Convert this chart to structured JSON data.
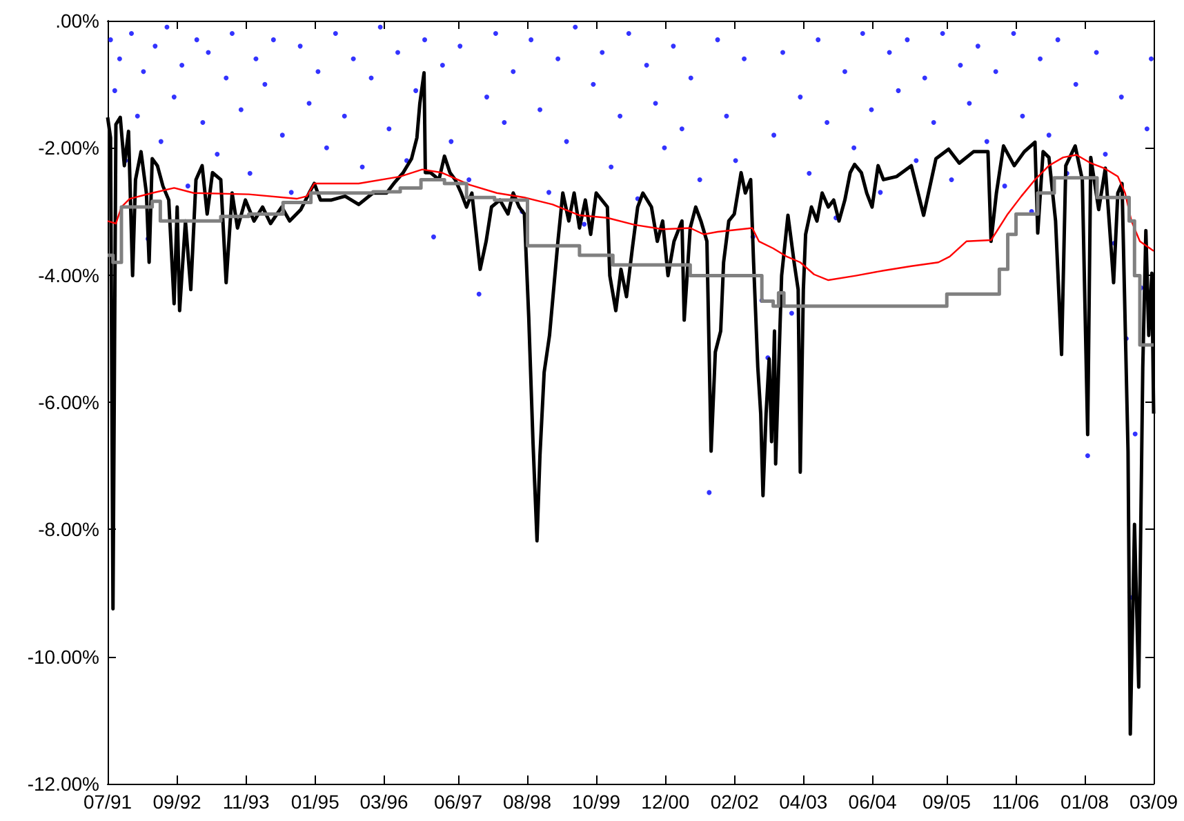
{
  "chart_data": {
    "type": "line",
    "xlim": [
      "1991-07-01",
      "2009-03-01"
    ],
    "ylim": [
      -12,
      0
    ],
    "xticks": [
      {
        "value": "1991-07",
        "label": "07/91"
      },
      {
        "value": "1992-09",
        "label": "09/92"
      },
      {
        "value": "1993-11",
        "label": "11/93"
      },
      {
        "value": "1995-01",
        "label": "01/95"
      },
      {
        "value": "1996-03",
        "label": "03/96"
      },
      {
        "value": "1997-06",
        "label": "06/97"
      },
      {
        "value": "1998-08",
        "label": "08/98"
      },
      {
        "value": "1999-10",
        "label": "10/99"
      },
      {
        "value": "2000-12",
        "label": "12/00"
      },
      {
        "value": "2002-02",
        "label": "02/02"
      },
      {
        "value": "2003-04",
        "label": "04/03"
      },
      {
        "value": "2004-06",
        "label": "06/04"
      },
      {
        "value": "2005-09",
        "label": "09/05"
      },
      {
        "value": "2006-11",
        "label": "11/06"
      },
      {
        "value": "2008-01",
        "label": "01/08"
      },
      {
        "value": "2009-03",
        "label": "03/09"
      }
    ],
    "yticks": [
      {
        "value": 0,
        "label": ".00%"
      },
      {
        "value": -2,
        "label": "-2.00%"
      },
      {
        "value": -4,
        "label": "-4.00%"
      },
      {
        "value": -6,
        "label": "-6.00%"
      },
      {
        "value": -8,
        "label": "-8.00%"
      },
      {
        "value": -10,
        "label": "-10.00%"
      },
      {
        "value": -12,
        "label": "-12.00%"
      }
    ],
    "series": [
      {
        "type": "scatter",
        "color": "#0000ff",
        "x": [
          "1991-07-19",
          "1991-08-14",
          "1991-09-13",
          "1991-10-19",
          "1991-11-25",
          "1992-01-01",
          "1992-02-07",
          "1992-03-06",
          "1992-04-19",
          "1992-05-25",
          "1992-07-01",
          "1992-08-14",
          "1992-10-01",
          "1992-11-07",
          "1993-01-01",
          "1993-02-07",
          "1993-03-13",
          "1993-05-07",
          "1993-07-01",
          "1993-08-07",
          "1993-10-01",
          "1993-11-25",
          "1994-01-01",
          "1994-02-25",
          "1994-04-19",
          "1994-06-13",
          "1994-08-07",
          "1994-10-01",
          "1994-11-25",
          "1995-01-19",
          "1995-03-13",
          "1995-05-07",
          "1995-07-01",
          "1995-08-25",
          "1995-10-19",
          "1995-12-13",
          "1996-02-07",
          "1996-04-01",
          "1996-05-25",
          "1996-07-19",
          "1996-09-13",
          "1996-11-07",
          "1997-01-01",
          "1997-02-25",
          "1997-04-19",
          "1997-06-13",
          "1997-08-07",
          "1997-10-08",
          "1997-11-25",
          "1998-01-19",
          "1998-03-13",
          "1998-05-07",
          "1998-07-01",
          "1998-08-25",
          "1998-10-19",
          "1998-12-13",
          "1999-02-07",
          "1999-04-01",
          "1999-05-25",
          "1999-07-19",
          "1999-09-13",
          "1999-11-07",
          "2000-01-01",
          "2000-02-25",
          "2000-04-19",
          "2000-06-13",
          "2000-08-07",
          "2000-10-01",
          "2000-11-25",
          "2001-01-19",
          "2001-03-13",
          "2001-05-07",
          "2001-07-01",
          "2001-08-28",
          "2001-10-19",
          "2001-12-13",
          "2002-02-07",
          "2002-04-01",
          "2002-05-25",
          "2002-07-19",
          "2002-08-25",
          "2002-10-01",
          "2002-11-25",
          "2003-01-19",
          "2003-03-13",
          "2003-05-07",
          "2003-07-01",
          "2003-08-25",
          "2003-10-19",
          "2003-12-13",
          "2004-02-07",
          "2004-04-01",
          "2004-05-25",
          "2004-07-19",
          "2004-09-13",
          "2004-11-07",
          "2005-01-01",
          "2005-02-25",
          "2005-04-19",
          "2005-06-13",
          "2005-08-07",
          "2005-10-01",
          "2005-11-25",
          "2006-01-19",
          "2006-03-13",
          "2006-05-07",
          "2006-07-01",
          "2006-08-25",
          "2006-10-19",
          "2006-12-13",
          "2007-02-07",
          "2007-04-01",
          "2007-05-25",
          "2007-07-19",
          "2007-09-13",
          "2007-11-07",
          "2008-01-19",
          "2008-03-13",
          "2008-05-07",
          "2008-07-01",
          "2008-08-14",
          "2008-09-13",
          "2008-10-08",
          "2008-11-07",
          "2008-12-13",
          "2009-01-19",
          "2009-02-14"
        ],
        "values": [
          -0.3,
          -1.1,
          -0.6,
          -2.2,
          -0.2,
          -1.5,
          -0.8,
          -3.43,
          -0.4,
          -1.9,
          -0.1,
          -1.2,
          -0.7,
          -2.6,
          -0.3,
          -1.6,
          -0.5,
          -2.1,
          -0.9,
          -0.2,
          -1.4,
          -2.4,
          -0.6,
          -1.0,
          -0.3,
          -1.8,
          -2.7,
          -0.4,
          -1.3,
          -0.8,
          -2.0,
          -0.2,
          -1.5,
          -0.6,
          -2.3,
          -0.9,
          -0.1,
          -1.7,
          -0.5,
          -2.2,
          -1.1,
          -0.3,
          -3.4,
          -0.7,
          -1.9,
          -0.4,
          -2.5,
          -4.3,
          -1.2,
          -0.2,
          -1.6,
          -0.8,
          -3.0,
          -0.3,
          -1.4,
          -2.7,
          -0.6,
          -1.9,
          -0.1,
          -3.2,
          -1.0,
          -0.5,
          -2.3,
          -1.5,
          -0.2,
          -2.8,
          -0.7,
          -1.3,
          -2.0,
          -0.4,
          -1.7,
          -0.9,
          -2.5,
          -7.42,
          -0.3,
          -1.5,
          -2.2,
          -0.6,
          -3.4,
          -4.4,
          -5.3,
          -1.8,
          -0.5,
          -4.6,
          -1.2,
          -2.4,
          -0.3,
          -1.6,
          -3.1,
          -0.8,
          -2.0,
          -0.2,
          -1.4,
          -2.7,
          -0.5,
          -1.1,
          -0.3,
          -2.2,
          -0.9,
          -1.6,
          -0.2,
          -2.5,
          -0.7,
          -1.3,
          -0.4,
          -1.9,
          -0.8,
          -2.6,
          -0.2,
          -1.5,
          -3.0,
          -0.6,
          -1.8,
          -0.3,
          -2.4,
          -1.0,
          -6.84,
          -0.5,
          -2.1,
          -3.5,
          -1.2,
          -5.0,
          -9.07,
          -6.5,
          -4.2,
          -1.7,
          -0.6
        ]
      },
      {
        "type": "line",
        "color": "#000000",
        "x": [
          "1991-07-01",
          "1991-07-19",
          "1991-08-03",
          "1991-08-21",
          "1991-09-17",
          "1991-10-12",
          "1991-11-07",
          "1991-12-02",
          "1991-12-20",
          "1992-01-23",
          "1992-02-25",
          "1992-03-13",
          "1992-04-01",
          "1992-05-03",
          "1992-06-06",
          "1992-07-12",
          "1992-08-14",
          "1992-09-02",
          "1992-09-17",
          "1992-10-23",
          "1992-11-25",
          "1992-12-27",
          "1993-02-03",
          "1993-03-06",
          "1993-04-08",
          "1993-05-29",
          "1993-07-01",
          "1993-08-07",
          "1993-09-09",
          "1993-10-28",
          "1993-12-20",
          "1994-02-11",
          "1994-04-01",
          "1994-06-09",
          "1994-07-28",
          "1994-10-05",
          "1994-11-25",
          "1994-12-27",
          "1995-02-03",
          "1995-04-12",
          "1995-07-05",
          "1995-09-27",
          "1995-12-24",
          "1996-03-17",
          "1996-05-07",
          "1996-06-27",
          "1996-08-18",
          "1996-09-20",
          "1996-10-08",
          "1996-11-03",
          "1996-11-11",
          "1996-12-13",
          "1997-02-03",
          "1997-03-09",
          "1997-04-12",
          "1997-05-14",
          "1997-06-20",
          "1997-07-23",
          "1997-08-25",
          "1997-10-15",
          "1997-11-21",
          "1997-12-24",
          "1998-02-14",
          "1998-04-05",
          "1998-05-07",
          "1998-06-13",
          "1998-07-15",
          "1998-08-11",
          "1998-09-06",
          "1998-10-01",
          "1998-10-19",
          "1998-11-14",
          "1998-12-17",
          "1999-02-07",
          "1999-03-09",
          "1999-04-15",
          "1999-05-18",
          "1999-06-20",
          "1999-07-26",
          "1999-08-28",
          "1999-10-01",
          "1999-12-09",
          "1999-12-24",
          "2000-01-30",
          "2000-03-02",
          "2000-04-05",
          "2000-05-11",
          "2000-06-13",
          "2000-07-15",
          "2000-09-06",
          "2000-10-12",
          "2000-11-14",
          "2000-12-17",
          "2001-01-23",
          "2001-03-13",
          "2001-03-27",
          "2001-05-03",
          "2001-06-06",
          "2001-07-08",
          "2001-08-14",
          "2001-09-09",
          "2001-10-05",
          "2001-11-07",
          "2001-11-25",
          "2001-12-27",
          "2002-01-30",
          "2002-03-13",
          "2002-04-08",
          "2002-05-11",
          "2002-05-29",
          "2002-06-24",
          "2002-07-12",
          "2002-07-26",
          "2002-08-14",
          "2002-09-02",
          "2002-09-17",
          "2002-10-05",
          "2002-10-12",
          "2002-11-18",
          "2002-12-27",
          "2003-02-03",
          "2003-02-28",
          "2003-03-13",
          "2003-04-01",
          "2003-04-15",
          "2003-05-21",
          "2003-06-24",
          "2003-07-26",
          "2003-09-02",
          "2003-10-05",
          "2003-11-07",
          "2003-12-13",
          "2004-01-15",
          "2004-02-11",
          "2004-03-24",
          "2004-04-26",
          "2004-05-29",
          "2004-07-05",
          "2004-08-07",
          "2004-10-28",
          "2005-01-26",
          "2005-04-12",
          "2005-06-27",
          "2005-09-13",
          "2005-11-18",
          "2006-02-14",
          "2006-05-14",
          "2006-06-02",
          "2006-07-05",
          "2006-08-18",
          "2006-10-23",
          "2006-12-24",
          "2007-02-28",
          "2007-03-17",
          "2007-04-19",
          "2007-05-25",
          "2007-07-05",
          "2007-08-11",
          "2007-09-06",
          "2007-11-03",
          "2007-12-17",
          "2008-01-19",
          "2008-02-07",
          "2008-03-27",
          "2008-05-07",
          "2008-06-27",
          "2008-07-23",
          "2008-08-18",
          "2008-09-24",
          "2008-10-08",
          "2008-11-03",
          "2008-11-29",
          "2008-12-24",
          "2009-01-12",
          "2009-01-30",
          "2009-02-18",
          "2009-03-01"
        ],
        "values": [
          -1.52,
          -1.84,
          -9.25,
          -1.63,
          -1.52,
          -2.28,
          -1.74,
          -4.01,
          -2.5,
          -2.06,
          -2.71,
          -3.8,
          -2.17,
          -2.28,
          -2.6,
          -2.82,
          -4.45,
          -2.93,
          -4.56,
          -3.15,
          -4.23,
          -2.5,
          -2.28,
          -3.04,
          -2.39,
          -2.5,
          -4.12,
          -2.71,
          -3.26,
          -2.82,
          -3.15,
          -2.93,
          -3.19,
          -2.93,
          -3.15,
          -2.97,
          -2.71,
          -2.56,
          -2.82,
          -2.82,
          -2.76,
          -2.89,
          -2.71,
          -2.71,
          -2.54,
          -2.39,
          -2.17,
          -1.84,
          -1.3,
          -0.82,
          -2.39,
          -2.39,
          -2.5,
          -2.13,
          -2.39,
          -2.5,
          -2.71,
          -2.93,
          -2.71,
          -3.91,
          -3.47,
          -2.93,
          -2.82,
          -3.04,
          -2.71,
          -2.93,
          -3.04,
          -4.67,
          -6.62,
          -8.18,
          -6.84,
          -5.53,
          -4.95,
          -3.47,
          -2.71,
          -3.15,
          -2.71,
          -3.26,
          -2.82,
          -3.36,
          -2.71,
          -2.93,
          -4.01,
          -4.56,
          -3.91,
          -4.34,
          -3.58,
          -2.93,
          -2.71,
          -2.93,
          -3.47,
          -3.15,
          -4.01,
          -3.47,
          -3.15,
          -4.71,
          -3.26,
          -2.93,
          -3.15,
          -3.47,
          -6.77,
          -5.21,
          -4.88,
          -3.8,
          -3.15,
          -3.04,
          -2.39,
          -2.71,
          -2.5,
          -3.8,
          -5.45,
          -6.18,
          -7.47,
          -6.18,
          -5.32,
          -6.62,
          -4.88,
          -6.97,
          -4.01,
          -3.06,
          -3.8,
          -4.23,
          -7.1,
          -4.23,
          -3.36,
          -2.93,
          -3.15,
          -2.71,
          -2.93,
          -2.82,
          -3.15,
          -2.82,
          -2.39,
          -2.26,
          -2.39,
          -2.71,
          -2.93,
          -2.28,
          -2.5,
          -2.45,
          -2.28,
          -3.06,
          -2.17,
          -2.02,
          -2.24,
          -2.06,
          -2.06,
          -3.47,
          -2.71,
          -1.97,
          -2.28,
          -2.06,
          -1.91,
          -3.34,
          -2.06,
          -2.15,
          -3.15,
          -5.25,
          -2.28,
          -1.97,
          -2.5,
          -6.51,
          -2.15,
          -2.97,
          -2.32,
          -4.12,
          -2.71,
          -2.56,
          -6.77,
          -11.22,
          -7.92,
          -10.48,
          -5.45,
          -3.3,
          -4.95,
          -3.97,
          -6.18
        ]
      },
      {
        "type": "line",
        "color": "#ff0000",
        "x": [
          "1991-07-01",
          "1991-08-21",
          "1991-09-24",
          "1991-11-14",
          "1992-04-01",
          "1992-08-14",
          "1992-12-13",
          "1993-11-18",
          "1994-09-09",
          "1994-11-11",
          "1994-12-27",
          "1995-09-27",
          "1996-06-09",
          "1996-10-23",
          "1997-02-21",
          "1997-08-11",
          "1998-01-26",
          "1998-07-15",
          "1999-01-05",
          "1999-06-20",
          "1999-12-09",
          "2000-05-25",
          "2000-11-14",
          "2001-05-03",
          "2001-07-26",
          "2001-10-19",
          "2002-05-21",
          "2002-07-01",
          "2002-09-27",
          "2002-12-20",
          "2003-03-13",
          "2003-06-06",
          "2003-09-02",
          "2004-02-18",
          "2004-08-07",
          "2005-01-26",
          "2005-07-12",
          "2005-09-20",
          "2006-01-01",
          "2006-06-02",
          "2006-07-05",
          "2006-09-13",
          "2006-12-06",
          "2007-02-28",
          "2007-05-25",
          "2007-08-21",
          "2007-11-11",
          "2008-02-07",
          "2008-04-30",
          "2008-07-23",
          "2008-09-06",
          "2008-10-15",
          "2008-12-06",
          "2009-03-01"
        ],
        "values": [
          -3.15,
          -3.19,
          -2.93,
          -2.8,
          -2.71,
          -2.63,
          -2.71,
          -2.73,
          -2.8,
          -2.76,
          -2.56,
          -2.56,
          -2.45,
          -2.34,
          -2.39,
          -2.58,
          -2.71,
          -2.78,
          -2.89,
          -3.06,
          -3.1,
          -3.21,
          -3.28,
          -3.26,
          -3.36,
          -3.32,
          -3.26,
          -3.47,
          -3.58,
          -3.71,
          -3.8,
          -3.99,
          -4.08,
          -4.01,
          -3.93,
          -3.86,
          -3.8,
          -3.71,
          -3.47,
          -3.45,
          -3.32,
          -3.04,
          -2.76,
          -2.5,
          -2.28,
          -2.15,
          -2.11,
          -2.24,
          -2.32,
          -2.45,
          -2.71,
          -3.15,
          -3.47,
          -3.62
        ]
      },
      {
        "type": "step",
        "color": "#808080",
        "x": [
          "1991-07-01",
          "1991-08-03",
          "1991-09-24",
          "1992-04-01",
          "1992-05-21",
          "1993-05-29",
          "1993-11-18",
          "1994-06-17",
          "1994-12-06",
          "1995-12-24",
          "1996-06-09",
          "1996-10-15",
          "1997-03-09",
          "1997-07-23",
          "1998-01-12",
          "1998-08-03",
          "1999-06-20",
          "2000-01-12",
          "2001-05-03",
          "2002-07-19",
          "2002-09-27",
          "2002-10-30",
          "2002-12-02",
          "2005-09-02",
          "2006-07-23",
          "2006-09-13",
          "2006-11-03",
          "2007-03-17",
          "2007-06-27",
          "2008-03-17",
          "2008-10-01",
          "2008-11-03",
          "2008-12-06",
          "2009-03-01"
        ],
        "values": [
          -3.69,
          -3.8,
          -2.93,
          -2.84,
          -3.15,
          -3.08,
          -3.04,
          -2.86,
          -2.71,
          -2.69,
          -2.63,
          -2.5,
          -2.56,
          -2.78,
          -2.82,
          -3.54,
          -3.69,
          -3.84,
          -4.01,
          -4.41,
          -4.49,
          -4.28,
          -4.49,
          -4.3,
          -3.91,
          -3.36,
          -3.04,
          -2.71,
          -2.47,
          -2.78,
          -3.15,
          -4.01,
          -5.1,
          -5.1
        ]
      }
    ]
  }
}
